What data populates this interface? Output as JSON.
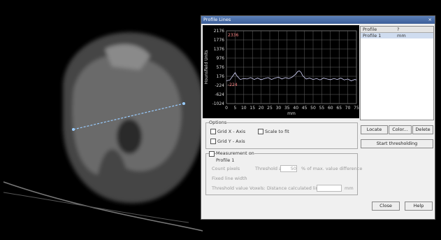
{
  "dialog": {
    "title": "Profile Lines",
    "close": "×",
    "plot": {
      "y_label": "Hounsfield Units",
      "x_label": "mm",
      "max_annotation": "2336",
      "min_annotation": "-224",
      "xlim": [
        0,
        75
      ],
      "ylim": [
        -1024,
        2176
      ],
      "xticks": [
        0,
        5,
        10,
        15,
        20,
        25,
        30,
        35,
        40,
        45,
        50,
        55,
        60,
        65,
        70,
        75
      ],
      "yticks": [
        -1024,
        -624,
        -224,
        176,
        576,
        976,
        1376,
        1776,
        2176
      ],
      "series": [
        {
          "name": "Profile 1",
          "color": "#d8d8ff",
          "x": [
            0,
            2,
            4,
            5,
            6,
            8,
            10,
            12,
            14,
            16,
            18,
            20,
            22,
            24,
            26,
            28,
            30,
            32,
            34,
            36,
            38,
            40,
            41,
            42,
            43,
            44,
            46,
            48,
            50,
            52,
            54,
            56,
            58,
            60,
            62,
            64,
            66,
            68,
            70,
            72,
            74,
            75
          ],
          "values": [
            -24,
            16,
            226,
            336,
            196,
            36,
            76,
            56,
            116,
            36,
            96,
            26,
            76,
            116,
            36,
            96,
            136,
            56,
            116,
            76,
            146,
            276,
            376,
            416,
            356,
            196,
            56,
            96,
            36,
            76,
            16,
            96,
            56,
            26,
            76,
            36,
            96,
            16,
            56,
            -24,
            36,
            16
          ]
        }
      ]
    },
    "list": {
      "columns": [
        "Profile",
        "?"
      ],
      "rows": [
        [
          "Profile 1",
          "mm"
        ]
      ]
    },
    "buttons": {
      "locate": "Locate",
      "color": "Color...",
      "delete": "Delete",
      "start": "Start thresholding",
      "close_btn": "Close",
      "help": "Help"
    },
    "options": {
      "title": "Options",
      "grid_x": "Grid X - Axis",
      "scale_fit": "Scale to fit",
      "grid_y": "Grid Y - Axis"
    },
    "measurement": {
      "title": "Measurement on",
      "profile": "Profile 1",
      "opt1": "Count pixels",
      "threshold_label": "Threshold at",
      "threshold_value": "50",
      "opt1_suffix": "% of max. value difference",
      "opt2": "Fixed line width",
      "opt3": "Threshold value",
      "opt3_label": "Voxels: Distance calculated lines:",
      "unit": "mm"
    }
  }
}
